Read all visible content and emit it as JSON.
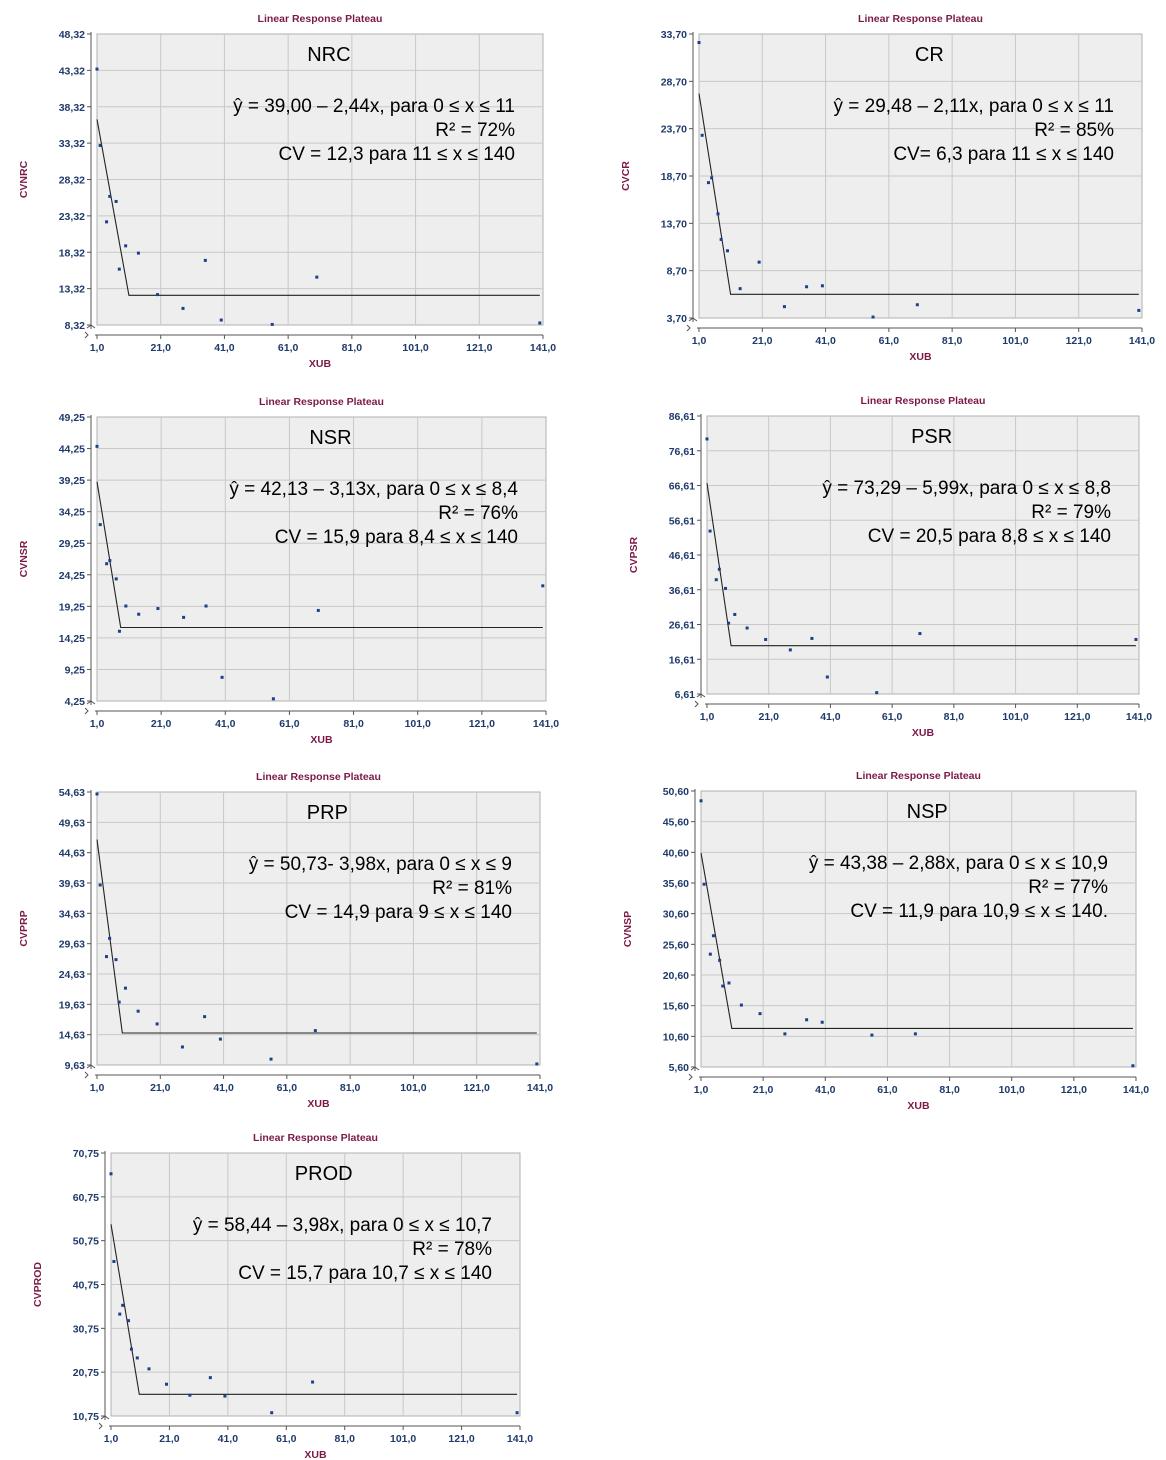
{
  "chart_data": [
    {
      "type": "scatter",
      "title": "Linear Response Plateau",
      "label": "NRC",
      "xlabel": "XUB",
      "ylabel": "CVNRC",
      "xlim": [
        1,
        141
      ],
      "ylim": [
        8.32,
        48.32
      ],
      "xticks": [
        "1,0",
        "21,0",
        "41,0",
        "61,0",
        "81,0",
        "101,0",
        "121,0",
        "141,0"
      ],
      "yticks": [
        "8,32",
        "13,32",
        "18,32",
        "23,32",
        "28,32",
        "33,32",
        "38,32",
        "43,32",
        "48,32"
      ],
      "grid": true,
      "equation": [
        "ŷ = 39,00 – 2,44x, para 0 ≤ x ≤ 11",
        "R² = 72%",
        "CV = 12,3 para 11 ≤ x ≤ 140"
      ],
      "points": [
        [
          1,
          43.5
        ],
        [
          2,
          33
        ],
        [
          4,
          22.5
        ],
        [
          5,
          26
        ],
        [
          7,
          25.3
        ],
        [
          8,
          16
        ],
        [
          10,
          19.2
        ],
        [
          14,
          18.2
        ],
        [
          20,
          12.5
        ],
        [
          28,
          10.6
        ],
        [
          35,
          17.2
        ],
        [
          40,
          9
        ],
        [
          56,
          8.4
        ],
        [
          70,
          14.9
        ],
        [
          140,
          8.6
        ]
      ],
      "fit": [
        [
          1,
          36.6
        ],
        [
          11,
          12.4
        ],
        [
          140,
          12.4
        ]
      ]
    },
    {
      "type": "scatter",
      "title": "Linear Response Plateau",
      "label": "CR",
      "xlabel": "XUB",
      "ylabel": "CVCR",
      "xlim": [
        1,
        141
      ],
      "ylim": [
        3.7,
        33.7
      ],
      "xticks": [
        "1,0",
        "21,0",
        "41,0",
        "61,0",
        "81,0",
        "101,0",
        "121,0",
        "141,0"
      ],
      "yticks": [
        "3,70",
        "8,70",
        "13,70",
        "18,70",
        "23,70",
        "28,70",
        "33,70"
      ],
      "grid": true,
      "equation": [
        "ŷ = 29,48 – 2,11x, para 0 ≤ x ≤ 11",
        "R² = 85%",
        "CV= 6,3 para 11 ≤ x ≤ 140"
      ],
      "points": [
        [
          1,
          32.8
        ],
        [
          2,
          23
        ],
        [
          4,
          18
        ],
        [
          5,
          18.5
        ],
        [
          7,
          14.7
        ],
        [
          8,
          12
        ],
        [
          10,
          10.8
        ],
        [
          14,
          6.8
        ],
        [
          20,
          9.6
        ],
        [
          28,
          4.9
        ],
        [
          35,
          7
        ],
        [
          40,
          7.1
        ],
        [
          56,
          3.8
        ],
        [
          70,
          5.1
        ],
        [
          140,
          4.5
        ]
      ],
      "fit": [
        [
          1,
          27.4
        ],
        [
          11,
          6.2
        ],
        [
          140,
          6.2
        ]
      ]
    },
    {
      "type": "scatter",
      "title": "Linear Response Plateau",
      "label": "NSR",
      "xlabel": "XUB",
      "ylabel": "CVNSR",
      "xlim": [
        1,
        141
      ],
      "ylim": [
        4.25,
        49.25
      ],
      "xticks": [
        "1,0",
        "21,0",
        "41,0",
        "61,0",
        "81,0",
        "101,0",
        "121,0",
        "141,0"
      ],
      "yticks": [
        "4,25",
        "9,25",
        "14,25",
        "19,25",
        "24,25",
        "29,25",
        "34,25",
        "39,25",
        "44,25",
        "49,25"
      ],
      "grid": true,
      "equation": [
        "ŷ = 42,13 – 3,13x, para 0 ≤ x ≤ 8,4",
        "R² = 76%",
        "CV = 15,9 para 8,4 ≤ x ≤ 140"
      ],
      "points": [
        [
          1,
          44.6
        ],
        [
          2,
          32.2
        ],
        [
          4,
          26
        ],
        [
          5,
          26.5
        ],
        [
          7,
          23.6
        ],
        [
          8,
          15.3
        ],
        [
          10,
          19.3
        ],
        [
          14,
          18
        ],
        [
          20,
          18.9
        ],
        [
          28,
          17.5
        ],
        [
          35,
          19.3
        ],
        [
          40,
          8
        ],
        [
          56,
          4.6
        ],
        [
          70,
          18.6
        ],
        [
          140,
          22.5
        ]
      ],
      "fit": [
        [
          1,
          39
        ],
        [
          8.4,
          15.9
        ],
        [
          140,
          15.9
        ]
      ]
    },
    {
      "type": "scatter",
      "title": "Linear Response Plateau",
      "label": "PSR",
      "xlabel": "XUB",
      "ylabel": "CVPSR",
      "xlim": [
        1,
        141
      ],
      "ylim": [
        6.61,
        86.61
      ],
      "xticks": [
        "1,0",
        "21,0",
        "41,0",
        "61,0",
        "81,0",
        "101,0",
        "121,0",
        "141,0"
      ],
      "yticks": [
        "6,61",
        "16,61",
        "26,61",
        "36,61",
        "46,61",
        "56,61",
        "66,61",
        "76,61",
        "86,61"
      ],
      "grid": true,
      "equation": [
        "ŷ = 73,29 – 5,99x, para 0 ≤ x ≤ 8,8",
        "R² = 79%",
        "CV = 20,5 para 8,8 ≤ x ≤ 140"
      ],
      "points": [
        [
          1,
          80
        ],
        [
          2,
          53.5
        ],
        [
          4,
          39.5
        ],
        [
          5,
          42.5
        ],
        [
          7,
          37
        ],
        [
          8,
          27
        ],
        [
          10,
          29.5
        ],
        [
          14,
          25.6
        ],
        [
          20,
          22.3
        ],
        [
          28,
          19.3
        ],
        [
          35,
          22.6
        ],
        [
          40,
          11.5
        ],
        [
          56,
          7
        ],
        [
          70,
          24
        ],
        [
          140,
          22.3
        ]
      ],
      "fit": [
        [
          1,
          67.3
        ],
        [
          8.8,
          20.5
        ],
        [
          140,
          20.5
        ]
      ]
    },
    {
      "type": "scatter",
      "title": "Linear Response Plateau",
      "label": "PRP",
      "xlabel": "XUB",
      "ylabel": "CVPRP",
      "xlim": [
        1,
        141
      ],
      "ylim": [
        9.63,
        54.63
      ],
      "xticks": [
        "1,0",
        "21,0",
        "41,0",
        "61,0",
        "81,0",
        "101,0",
        "121,0",
        "141,0"
      ],
      "yticks": [
        "9,63",
        "14,63",
        "19,63",
        "24,63",
        "29,63",
        "34,63",
        "39,63",
        "44,63",
        "49,63",
        "54,63"
      ],
      "grid": true,
      "equation": [
        "ŷ = 50,73- 3,98x, para 0 ≤ x ≤ 9",
        "R² = 81%",
        "CV = 14,9 para 9 ≤ x ≤ 140"
      ],
      "points": [
        [
          1,
          54.3
        ],
        [
          2,
          39.3
        ],
        [
          4,
          27.5
        ],
        [
          5,
          30.5
        ],
        [
          7,
          27
        ],
        [
          8,
          20
        ],
        [
          10,
          22.3
        ],
        [
          14,
          18.5
        ],
        [
          20,
          16.4
        ],
        [
          28,
          12.6
        ],
        [
          35,
          17.6
        ],
        [
          40,
          13.9
        ],
        [
          56,
          10.6
        ],
        [
          70,
          15.3
        ],
        [
          140,
          9.8
        ]
      ],
      "fit": [
        [
          1,
          46.8
        ],
        [
          9,
          14.9
        ],
        [
          140,
          14.9
        ]
      ]
    },
    {
      "type": "scatter",
      "title": "Linear Response Plateau",
      "label": "NSP",
      "xlabel": "XUB",
      "ylabel": "CVNSP",
      "xlim": [
        1,
        141
      ],
      "ylim": [
        5.6,
        50.6
      ],
      "xticks": [
        "1,0",
        "21,0",
        "41,0",
        "61,0",
        "81,0",
        "101,0",
        "121,0",
        "141,0"
      ],
      "yticks": [
        "5,60",
        "10,60",
        "15,60",
        "20,60",
        "25,60",
        "30,60",
        "35,60",
        "40,60",
        "45,60",
        "50,60"
      ],
      "grid": true,
      "equation": [
        "ŷ = 43,38 – 2,88x, para 0 ≤ x ≤ 10,9",
        "R² = 77%",
        "CV = 11,9 para 10,9 ≤ x ≤ 140."
      ],
      "points": [
        [
          1,
          49
        ],
        [
          2,
          35.4
        ],
        [
          4,
          24
        ],
        [
          5,
          27
        ],
        [
          7,
          23
        ],
        [
          8,
          18.8
        ],
        [
          10,
          19.3
        ],
        [
          14,
          15.7
        ],
        [
          20,
          14.3
        ],
        [
          28,
          11
        ],
        [
          35,
          13.3
        ],
        [
          40,
          12.9
        ],
        [
          56,
          10.8
        ],
        [
          70,
          11
        ],
        [
          140,
          5.8
        ]
      ],
      "fit": [
        [
          1,
          40.5
        ],
        [
          10.9,
          11.9
        ],
        [
          140,
          11.9
        ]
      ]
    },
    {
      "type": "scatter",
      "title": "Linear Response Plateau",
      "label": "PROD",
      "xlabel": "XUB",
      "ylabel": "CVPROD",
      "xlim": [
        1,
        141
      ],
      "ylim": [
        10.75,
        70.75
      ],
      "xticks": [
        "1,0",
        "21,0",
        "41,0",
        "61,0",
        "81,0",
        "101,0",
        "121,0",
        "141,0"
      ],
      "yticks": [
        "10,75",
        "20,75",
        "30,75",
        "40,75",
        "50,75",
        "60,75",
        "70,75"
      ],
      "grid": true,
      "equation": [
        "ŷ = 58,44 – 3,98x, para 0 ≤ x ≤ 10,7",
        "R² = 78%",
        "CV = 15,7 para 10,7 ≤ x ≤ 140"
      ],
      "points": [
        [
          1,
          66
        ],
        [
          2,
          46
        ],
        [
          4,
          34
        ],
        [
          5,
          36
        ],
        [
          7,
          32.5
        ],
        [
          8,
          26
        ],
        [
          10,
          24
        ],
        [
          14,
          21.5
        ],
        [
          20,
          18
        ],
        [
          28,
          15.5
        ],
        [
          35,
          19.5
        ],
        [
          40,
          15.3
        ],
        [
          56,
          11.5
        ],
        [
          70,
          18.5
        ],
        [
          140,
          11.5
        ]
      ],
      "fit": [
        [
          1,
          54.5
        ],
        [
          10.7,
          15.7
        ],
        [
          140,
          15.7
        ]
      ]
    }
  ]
}
